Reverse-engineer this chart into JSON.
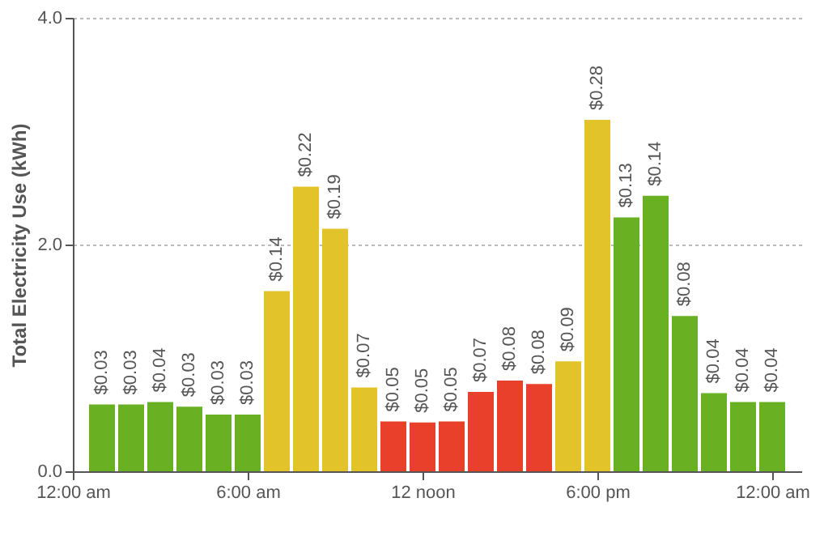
{
  "chart_data": {
    "type": "bar",
    "ylabel": "Total Electricity Use (kWh)",
    "x": [
      1,
      2,
      3,
      4,
      5,
      6,
      7,
      8,
      9,
      10,
      11,
      12,
      13,
      14,
      15,
      16,
      17,
      18,
      19,
      20,
      21,
      22,
      23,
      24
    ],
    "values": [
      0.59,
      0.59,
      0.61,
      0.57,
      0.5,
      0.5,
      1.59,
      2.51,
      2.14,
      0.74,
      0.44,
      0.43,
      0.44,
      0.7,
      0.8,
      0.77,
      0.97,
      3.1,
      2.24,
      2.43,
      1.37,
      0.69,
      0.61,
      0.61
    ],
    "colors": [
      "#6ab023",
      "#6ab023",
      "#6ab023",
      "#6ab023",
      "#6ab023",
      "#6ab023",
      "#e2c42a",
      "#e2c42a",
      "#e2c42a",
      "#e2c42a",
      "#e8402a",
      "#e8402a",
      "#e8402a",
      "#e8402a",
      "#e8402a",
      "#e8402a",
      "#e2c42a",
      "#e2c42a",
      "#6ab023",
      "#6ab023",
      "#6ab023",
      "#6ab023",
      "#6ab023",
      "#6ab023"
    ],
    "annotations": [
      {
        "text": "$0.03",
        "x": 1,
        "y": 0.59
      },
      {
        "text": "$0.03",
        "x": 2,
        "y": 0.59
      },
      {
        "text": "$0.04",
        "x": 3,
        "y": 0.61
      },
      {
        "text": "$0.03",
        "x": 4,
        "y": 0.57
      },
      {
        "text": "$0.03",
        "x": 5,
        "y": 0.5
      },
      {
        "text": "$0.03",
        "x": 6,
        "y": 0.5
      },
      {
        "text": "$0.14",
        "x": 7,
        "y": 1.59
      },
      {
        "text": "$0.22",
        "x": 8,
        "y": 2.51
      },
      {
        "text": "$0.19",
        "x": 9,
        "y": 2.14
      },
      {
        "text": "$0.07",
        "x": 10,
        "y": 0.74
      },
      {
        "text": "$0.05",
        "x": 11,
        "y": 0.44
      },
      {
        "text": "$0.05",
        "x": 12,
        "y": 0.43
      },
      {
        "text": "$0.05",
        "x": 13,
        "y": 0.44
      },
      {
        "text": "$0.07",
        "x": 14,
        "y": 0.7
      },
      {
        "text": "$0.08",
        "x": 15,
        "y": 0.8
      },
      {
        "text": "$0.08",
        "x": 16,
        "y": 0.77
      },
      {
        "text": "$0.09",
        "x": 17,
        "y": 0.97
      },
      {
        "text": "$0.28",
        "x": 18,
        "y": 3.1
      },
      {
        "text": "$0.13",
        "x": 19,
        "y": 2.24
      },
      {
        "text": "$0.14",
        "x": 20,
        "y": 2.43
      },
      {
        "text": "$0.08",
        "x": 21,
        "y": 1.37
      },
      {
        "text": "$0.04",
        "x": 22,
        "y": 0.69
      },
      {
        "text": "$0.04",
        "x": 23,
        "y": 0.61
      },
      {
        "text": "$0.04",
        "x": 24,
        "y": 0.61
      }
    ],
    "xlim": [
      0,
      25
    ],
    "xticks": [
      {
        "value": 0,
        "label": "12:00 am"
      },
      {
        "value": 6,
        "label": "6:00 am"
      },
      {
        "value": 12,
        "label": "12 noon"
      },
      {
        "value": 18,
        "label": "6:00 pm"
      },
      {
        "value": 24,
        "label": "12:00 am"
      }
    ],
    "ylim": [
      0,
      4
    ],
    "yticks": [
      {
        "value": 0,
        "label": "0.0"
      },
      {
        "value": 2,
        "label": "2.0"
      },
      {
        "value": 4,
        "label": "4.0"
      }
    ],
    "grid": "y"
  }
}
